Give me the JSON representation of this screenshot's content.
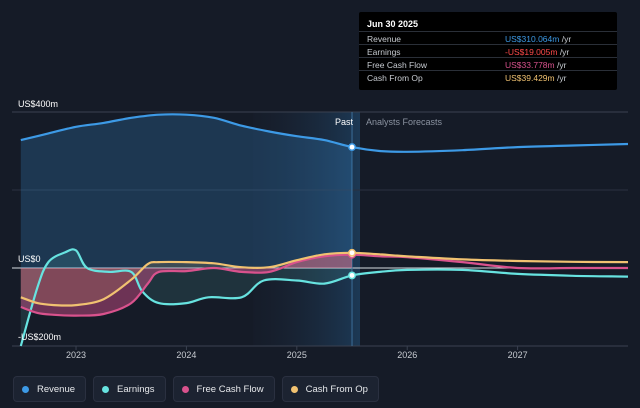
{
  "chart_data": {
    "type": "area-line",
    "y_unit_labels": [
      "US$400m",
      "US$0",
      "-US$200m"
    ],
    "ylim": [
      -200,
      400
    ],
    "x_ticks": [
      "2023",
      "2024",
      "2025",
      "2026",
      "2027"
    ],
    "divider_label_past": "Past",
    "divider_label_forecast": "Analysts Forecasts",
    "divider_date": 2025.5,
    "series": [
      {
        "name": "Revenue",
        "color": "#3d9ae6",
        "x": [
          2022.5,
          2022.75,
          2023.0,
          2023.25,
          2023.5,
          2023.75,
          2024.0,
          2024.25,
          2024.5,
          2024.75,
          2025.0,
          2025.25,
          2025.5,
          2025.75,
          2026.0,
          2026.5,
          2027.0,
          2027.5,
          2028.0
        ],
        "values": [
          328,
          345,
          362,
          372,
          385,
          393,
          393,
          385,
          365,
          350,
          338,
          328,
          310,
          300,
          298,
          302,
          310,
          314,
          318
        ]
      },
      {
        "name": "Earnings",
        "color": "#67e3e0",
        "x": [
          2022.5,
          2022.65,
          2022.75,
          2022.9,
          2023.0,
          2023.1,
          2023.3,
          2023.5,
          2023.6,
          2023.75,
          2024.0,
          2024.2,
          2024.5,
          2024.7,
          2025.0,
          2025.25,
          2025.5,
          2025.75,
          2026.0,
          2026.5,
          2027.0,
          2027.5,
          2028.0
        ],
        "values": [
          -200,
          -50,
          15,
          40,
          45,
          0,
          -10,
          -10,
          -60,
          -90,
          -90,
          -75,
          -75,
          -32,
          -32,
          -40,
          -19,
          -10,
          -5,
          -5,
          -15,
          -20,
          -22
        ]
      },
      {
        "name": "Free Cash Flow",
        "color": "#d9528d",
        "x": [
          2022.5,
          2022.65,
          2022.8,
          2023.0,
          2023.25,
          2023.5,
          2023.65,
          2023.75,
          2024.0,
          2024.25,
          2024.5,
          2024.75,
          2025.0,
          2025.25,
          2025.5,
          2025.75,
          2026.0,
          2026.5,
          2027.0,
          2027.5,
          2028.0
        ],
        "values": [
          -100,
          -115,
          -120,
          -122,
          -118,
          -90,
          -40,
          -10,
          -8,
          0,
          -10,
          -10,
          15,
          30,
          34,
          30,
          28,
          15,
          0,
          0,
          0
        ]
      },
      {
        "name": "Cash From Op",
        "color": "#f1c271",
        "x": [
          2022.5,
          2022.65,
          2022.8,
          2023.0,
          2023.25,
          2023.5,
          2023.65,
          2023.75,
          2024.0,
          2024.25,
          2024.5,
          2024.75,
          2025.0,
          2025.25,
          2025.5,
          2025.75,
          2026.0,
          2026.5,
          2027.0,
          2027.5,
          2028.0
        ],
        "values": [
          -75,
          -90,
          -95,
          -95,
          -80,
          -30,
          10,
          15,
          15,
          12,
          2,
          2,
          20,
          35,
          39,
          35,
          30,
          22,
          18,
          16,
          15
        ]
      }
    ]
  },
  "tooltip": {
    "date": "Jun 30 2025",
    "rows": [
      {
        "label": "Revenue",
        "value": "US$310.064m",
        "unit": " /yr",
        "color": "#3d9ae6"
      },
      {
        "label": "Earnings",
        "value": "-US$19.005m",
        "unit": " /yr",
        "color": "#ff4a4a"
      },
      {
        "label": "Free Cash Flow",
        "value": "US$33.778m",
        "unit": " /yr",
        "color": "#d9528d"
      },
      {
        "label": "Cash From Op",
        "value": "US$39.429m",
        "unit": " /yr",
        "color": "#f1c271"
      }
    ]
  },
  "legend": [
    {
      "label": "Revenue",
      "color": "#3d9ae6"
    },
    {
      "label": "Earnings",
      "color": "#67e3e0"
    },
    {
      "label": "Free Cash Flow",
      "color": "#d9528d"
    },
    {
      "label": "Cash From Op",
      "color": "#f1c271"
    }
  ]
}
